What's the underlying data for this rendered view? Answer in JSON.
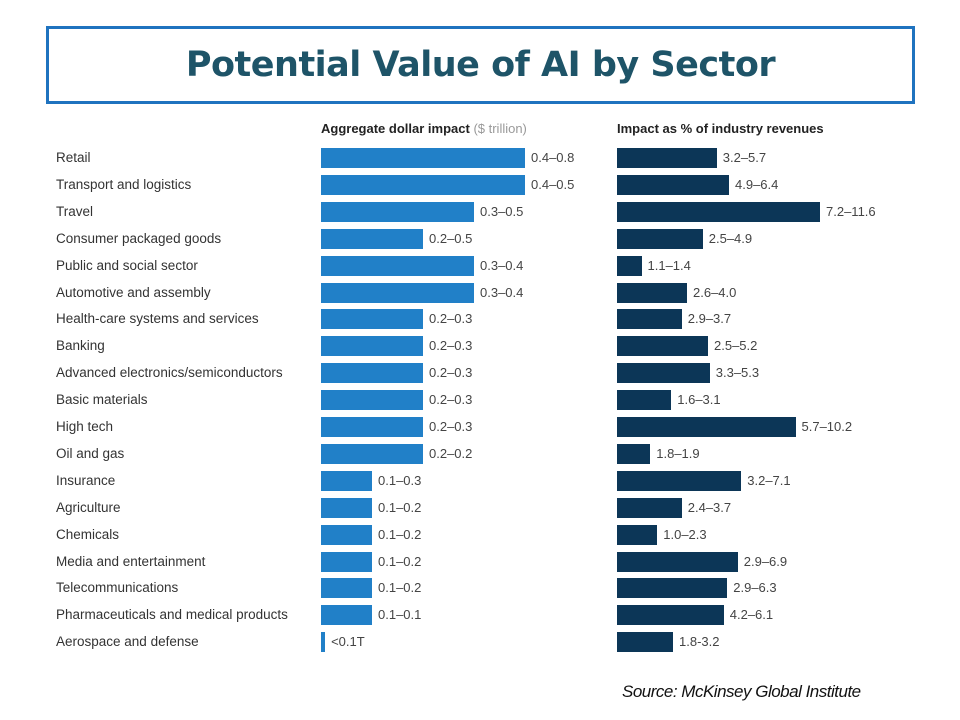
{
  "title": "Potential Value of AI by Sector",
  "source": "Source: McKinsey Global Institute",
  "chart_data": {
    "type": "bar",
    "orientation": "horizontal",
    "panels": [
      {
        "title": "Aggregate dollar impact",
        "unit_note": "($ trillion)",
        "color": "#2180c8"
      },
      {
        "title": "Impact as % of industry revenues",
        "color": "#0c3657"
      }
    ],
    "categories": [
      "Retail",
      "Transport and logistics",
      "Travel",
      "Consumer packaged goods",
      "Public and social sector",
      "Automotive and assembly",
      "Health-care systems and services",
      "Banking",
      "Advanced electronics/semiconductors",
      "Basic materials",
      "High tech",
      "Oil and gas",
      "Insurance",
      "Agriculture",
      "Chemicals",
      "Media and entertainment",
      "Telecommunications",
      "Pharmaceuticals and medical products",
      "Aerospace and defense"
    ],
    "dollar_labels": [
      "0.4–0.8",
      "0.4–0.5",
      "0.3–0.5",
      "0.2–0.5",
      "0.3–0.4",
      "0.3–0.4",
      "0.2–0.3",
      "0.2–0.3",
      "0.2–0.3",
      "0.2–0.3",
      "0.2–0.3",
      "0.2–0.2",
      "0.1–0.3",
      "0.1–0.2",
      "0.1–0.2",
      "0.1–0.2",
      "0.1–0.2",
      "0.1–0.1",
      "<0.1T"
    ],
    "dollar_bar_values": [
      0.4,
      0.4,
      0.3,
      0.2,
      0.3,
      0.3,
      0.2,
      0.2,
      0.2,
      0.2,
      0.2,
      0.2,
      0.1,
      0.1,
      0.1,
      0.1,
      0.1,
      0.1,
      0.008
    ],
    "pct_labels": [
      "3.2–5.7",
      "4.9–6.4",
      "7.2–11.6",
      "2.5–4.9",
      "1.1–1.4",
      "2.6–4.0",
      "2.9–3.7",
      "2.5–5.2",
      "3.3–5.3",
      "1.6–3.1",
      "5.7–10.2",
      "1.8–1.9",
      "3.2–7.1",
      "2.4–3.7",
      "1.0–2.3",
      "2.9–6.9",
      "2.9–6.3",
      "4.2–6.1",
      "1.8-3.2"
    ],
    "pct_bar_values": [
      5.7,
      6.4,
      11.6,
      4.9,
      1.4,
      4.0,
      3.7,
      5.2,
      5.3,
      3.1,
      10.2,
      1.9,
      7.1,
      3.7,
      2.3,
      6.9,
      6.3,
      6.1,
      3.2
    ]
  }
}
